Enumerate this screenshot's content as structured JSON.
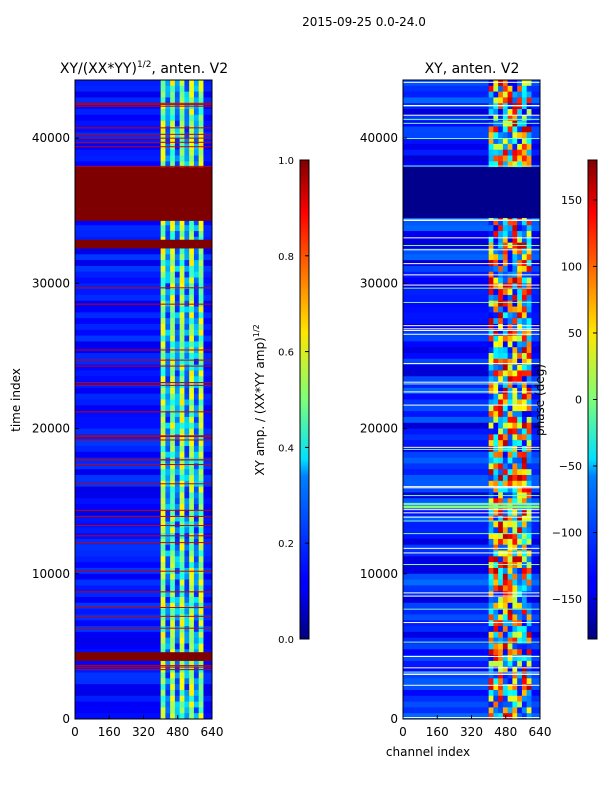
{
  "figure": {
    "suptitle": "2015-09-25 0.0-24.0"
  },
  "chart_data": [
    {
      "type": "heatmap",
      "title": "XY/(XX*YY)^(1/2), anten. V2",
      "title_main": "XY/(XX*YY)",
      "title_exp": "1/2",
      "title_tail": ", anten. V2",
      "xlabel": "",
      "ylabel": "time index",
      "xlim": [
        0,
        640
      ],
      "ylim": [
        0,
        44000
      ],
      "xticks": [
        0,
        160,
        320,
        480,
        640
      ],
      "yticks": [
        0,
        10000,
        20000,
        30000,
        40000
      ],
      "colormap": "jet",
      "value_range": [
        0.0,
        1.0
      ],
      "colorbar": {
        "label": "XY amp. / (XX*YY amp)^(1/2)",
        "label_main": "XY amp. / (XX*YY amp)",
        "label_exp": "1/2",
        "ticks": [
          0.0,
          0.2,
          0.4,
          0.6,
          0.8,
          1.0
        ],
        "tick_labels": [
          "0.0",
          "0.2",
          "0.4",
          "0.6",
          "0.8",
          "1.0"
        ]
      },
      "saturated_time_bands": [
        [
          34300,
          38000
        ],
        [
          32400,
          33000
        ],
        [
          4000,
          4600
        ]
      ],
      "bright_channel_range": [
        400,
        600
      ]
    },
    {
      "type": "heatmap",
      "title": "XY, anten. V2",
      "xlabel": "channel index",
      "ylabel": "",
      "xlim": [
        0,
        640
      ],
      "ylim": [
        0,
        44000
      ],
      "xticks": [
        0,
        160,
        320,
        480,
        640
      ],
      "yticks": [
        0,
        10000,
        20000,
        30000,
        40000
      ],
      "colormap": "jet",
      "value_range": [
        -180,
        180
      ],
      "colorbar": {
        "label": "phase (deg)",
        "ticks": [
          -150,
          -100,
          -50,
          0,
          50,
          100,
          150
        ],
        "tick_labels": [
          "−150",
          "−100",
          "−50",
          "0",
          "50",
          "100",
          "150"
        ]
      },
      "bright_channel_range": [
        400,
        600
      ]
    }
  ]
}
